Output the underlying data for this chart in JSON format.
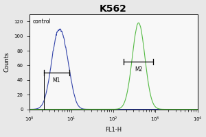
{
  "title": "K562",
  "xlabel": "FL1-H",
  "ylabel": "Counts",
  "xlim_log": [
    0,
    4
  ],
  "ylim": [
    0,
    130
  ],
  "yticks": [
    0,
    20,
    40,
    60,
    80,
    100,
    120
  ],
  "control_label": "control",
  "m1_label": "M1",
  "m2_label": "M2",
  "blue_peak_log": 0.68,
  "blue_peak_height": 100,
  "blue_sigma_log": 0.16,
  "green_peak_log": 2.6,
  "green_peak_height": 118,
  "green_sigma_log": 0.15,
  "blue_color": "#3344aa",
  "green_color": "#55bb44",
  "bg_color": "#e8e8e8",
  "plot_bg": "#f8f8f8",
  "m1_x_left_log": 0.35,
  "m1_x_right_log": 0.95,
  "m1_y": 50,
  "m2_x_left_log": 2.25,
  "m2_x_right_log": 2.95,
  "m2_y": 65,
  "title_fontsize": 10,
  "axis_fontsize": 6,
  "tick_fontsize": 5,
  "noise_seed": 42
}
